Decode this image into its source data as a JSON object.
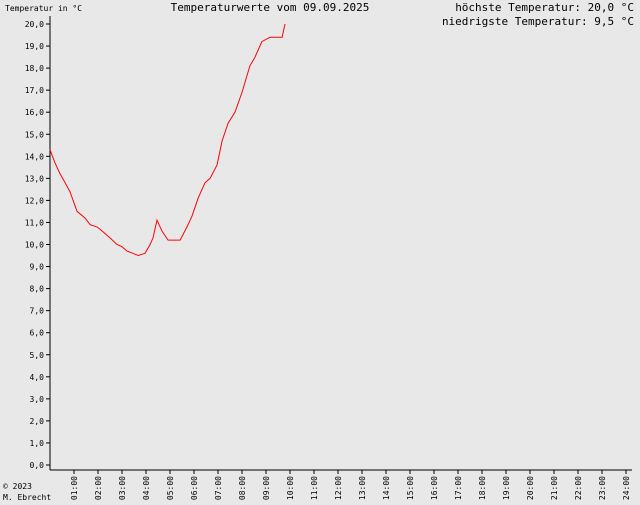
{
  "chart_data": {
    "type": "line",
    "title": "Temperaturwerte vom 09.09.2025",
    "y_label": "Temperatur in °C",
    "annotations": [
      "höchste Temperatur: 20,0 °C",
      "niedrigste Temperatur: 9,5 °C"
    ],
    "credits": [
      "© 2023",
      "M. Ebrecht"
    ],
    "color": "#ff0000",
    "x": [
      0.0,
      0.21,
      0.42,
      0.63,
      0.83,
      1.13,
      1.46,
      1.67,
      1.96,
      2.08,
      2.29,
      2.5,
      2.79,
      3.0,
      3.21,
      3.46,
      3.67,
      3.96,
      4.17,
      4.29,
      4.46,
      4.67,
      4.92,
      5.42,
      5.71,
      5.92,
      6.17,
      6.46,
      6.67,
      6.96,
      7.17,
      7.42,
      7.71,
      8.0,
      8.33,
      8.54,
      8.83,
      9.17,
      9.67,
      9.79
    ],
    "values": [
      14.3,
      13.7,
      13.2,
      12.8,
      12.4,
      11.5,
      11.2,
      10.9,
      10.8,
      10.7,
      10.5,
      10.3,
      10.0,
      9.9,
      9.7,
      9.6,
      9.5,
      9.6,
      10.0,
      10.3,
      11.1,
      10.6,
      10.2,
      10.2,
      10.8,
      11.3,
      12.1,
      12.8,
      13.0,
      13.6,
      14.7,
      15.5,
      16.0,
      16.9,
      18.1,
      18.5,
      19.2,
      19.4,
      19.4,
      20.0
    ],
    "xlim": [
      0,
      24
    ],
    "ylim": [
      0,
      20
    ],
    "xticks": [
      {
        "value": 1,
        "label": "01:00"
      },
      {
        "value": 2,
        "label": "02:00"
      },
      {
        "value": 3,
        "label": "03:00"
      },
      {
        "value": 4,
        "label": "04:00"
      },
      {
        "value": 5,
        "label": "05:00"
      },
      {
        "value": 6,
        "label": "06:00"
      },
      {
        "value": 7,
        "label": "07:00"
      },
      {
        "value": 8,
        "label": "08:00"
      },
      {
        "value": 9,
        "label": "09:00"
      },
      {
        "value": 10,
        "label": "10:00"
      },
      {
        "value": 11,
        "label": "11:00"
      },
      {
        "value": 12,
        "label": "12:00"
      },
      {
        "value": 13,
        "label": "13:00"
      },
      {
        "value": 14,
        "label": "14:00"
      },
      {
        "value": 15,
        "label": "15:00"
      },
      {
        "value": 16,
        "label": "16:00"
      },
      {
        "value": 17,
        "label": "17:00"
      },
      {
        "value": 18,
        "label": "18:00"
      },
      {
        "value": 19,
        "label": "19:00"
      },
      {
        "value": 20,
        "label": "20:00"
      },
      {
        "value": 21,
        "label": "21:00"
      },
      {
        "value": 22,
        "label": "22:00"
      },
      {
        "value": 23,
        "label": "23:00"
      },
      {
        "value": 24,
        "label": "24:00"
      }
    ],
    "yticks": [
      {
        "value": 0,
        "label": "0,0"
      },
      {
        "value": 1,
        "label": "1,0"
      },
      {
        "value": 2,
        "label": "2,0"
      },
      {
        "value": 3,
        "label": "3,0"
      },
      {
        "value": 4,
        "label": "4,0"
      },
      {
        "value": 5,
        "label": "5,0"
      },
      {
        "value": 6,
        "label": "6,0"
      },
      {
        "value": 7,
        "label": "7,0"
      },
      {
        "value": 8,
        "label": "8,0"
      },
      {
        "value": 9,
        "label": "9,0"
      },
      {
        "value": 10,
        "label": "10,0"
      },
      {
        "value": 11,
        "label": "11,0"
      },
      {
        "value": 12,
        "label": "12,0"
      },
      {
        "value": 13,
        "label": "13,0"
      },
      {
        "value": 14,
        "label": "14,0"
      },
      {
        "value": 15,
        "label": "15,0"
      },
      {
        "value": 16,
        "label": "16,0"
      },
      {
        "value": 17,
        "label": "17,0"
      },
      {
        "value": 18,
        "label": "18,0"
      },
      {
        "value": 19,
        "label": "19,0"
      },
      {
        "value": 20,
        "label": "20,0"
      }
    ]
  }
}
